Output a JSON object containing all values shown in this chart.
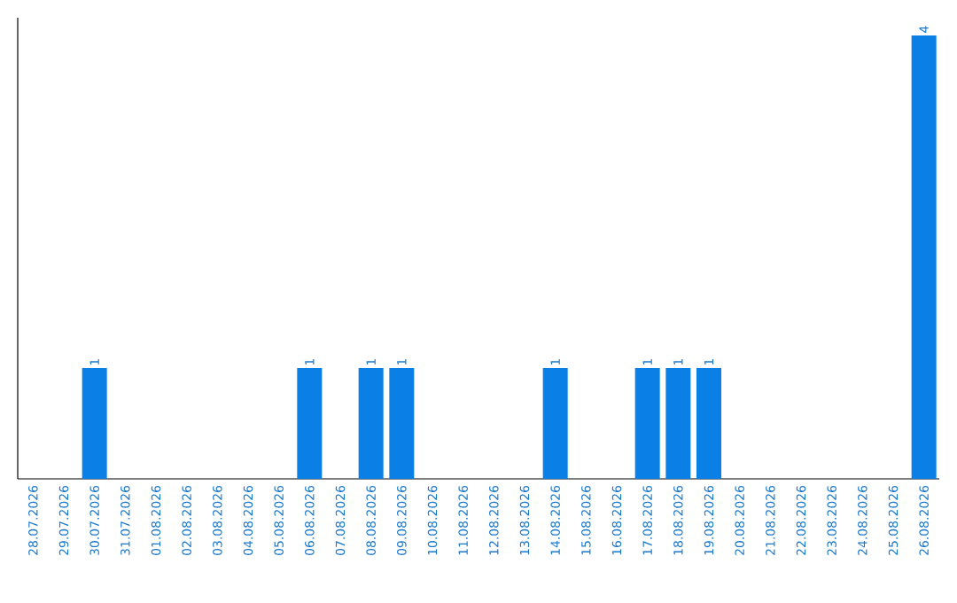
{
  "chart_data": {
    "type": "bar",
    "categories": [
      "28.07.2026",
      "29.07.2026",
      "30.07.2026",
      "31.07.2026",
      "01.08.2026",
      "02.08.2026",
      "03.08.2026",
      "04.08.2026",
      "05.08.2026",
      "06.08.2026",
      "07.08.2026",
      "08.08.2026",
      "09.08.2026",
      "10.08.2026",
      "11.08.2026",
      "12.08.2026",
      "13.08.2026",
      "14.08.2026",
      "15.08.2026",
      "16.08.2026",
      "17.08.2026",
      "18.08.2026",
      "19.08.2026",
      "20.08.2026",
      "21.08.2026",
      "22.08.2026",
      "23.08.2026",
      "24.08.2026",
      "25.08.2026",
      "26.08.2026"
    ],
    "values": [
      0,
      0,
      1,
      0,
      0,
      0,
      0,
      0,
      0,
      1,
      0,
      1,
      1,
      0,
      0,
      0,
      0,
      1,
      0,
      0,
      1,
      1,
      1,
      0,
      0,
      0,
      0,
      0,
      0,
      4
    ],
    "value_labels": [
      null,
      null,
      "1",
      null,
      null,
      null,
      null,
      null,
      null,
      "1",
      null,
      "1",
      "1",
      null,
      null,
      null,
      null,
      "1",
      null,
      null,
      "1",
      "1",
      "1",
      null,
      null,
      null,
      null,
      null,
      null,
      "4"
    ],
    "color": "#0a80e6"
  }
}
